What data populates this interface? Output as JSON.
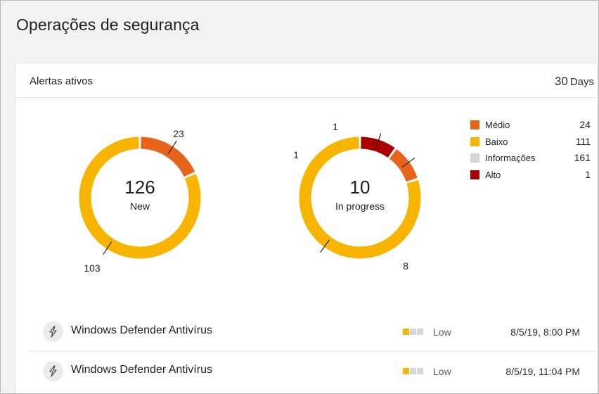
{
  "page": {
    "title": "Operações de segurança"
  },
  "card": {
    "title": "Alertas ativos",
    "range_value": "30",
    "range_unit": "Days"
  },
  "colors": {
    "medium": "#e8641b",
    "low": "#f7b500",
    "info": "#d6d6d6",
    "high": "#a80000",
    "track": "#ffffff"
  },
  "charts": [
    {
      "id": "new",
      "center_value": "126",
      "center_label": "New",
      "segments": [
        {
          "severity": "medium",
          "value": 23,
          "label": "23"
        },
        {
          "severity": "low",
          "value": 103,
          "label": "103"
        }
      ]
    },
    {
      "id": "in-progress",
      "center_value": "10",
      "center_label": "In progress",
      "segments": [
        {
          "severity": "high",
          "value": 1,
          "label": "1"
        },
        {
          "severity": "medium",
          "value": 1,
          "label": "1"
        },
        {
          "severity": "low",
          "value": 8,
          "label": "8"
        }
      ]
    }
  ],
  "legend": [
    {
      "key": "medium",
      "label": "Médio",
      "count": "24"
    },
    {
      "key": "low",
      "label": "Baixo",
      "count": "111"
    },
    {
      "key": "info",
      "label": "Informações",
      "count": "161"
    },
    {
      "key": "high",
      "label": "Alto",
      "count": "1"
    }
  ],
  "alerts": [
    {
      "name": "Windows Defender Antivírus",
      "severity": "Low",
      "time": "8/5/19, 8:00 PM"
    },
    {
      "name": "Windows Defender Antivírus",
      "severity": "Low",
      "time": "8/5/19, 11:04 PM"
    }
  ]
}
